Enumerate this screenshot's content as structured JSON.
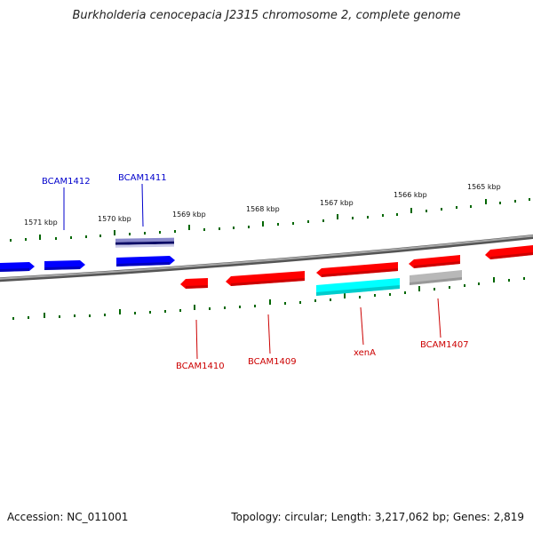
{
  "header": {
    "title": "Burkholderia cenocepacia J2315 chromosome 2, complete genome"
  },
  "footer": {
    "accession": "Accession: NC_011001",
    "summary": "Topology: circular; Length: 3,217,062 bp; Genes: 2,819"
  },
  "colors": {
    "forward_gene": "#0000ff",
    "reverse_gene": "#ff0000",
    "label_forward": "#0000cc",
    "label_reverse": "#cc0000",
    "rna_feature": "#00ffff",
    "pseudo_feature": "#b0b0b0",
    "backbone": "#808080",
    "tick": "#006600"
  },
  "scale": {
    "unit": "kbp",
    "labels": [
      "1571 kbp",
      "1570 kbp",
      "1569 kbp",
      "1568 kbp",
      "1567 kbp",
      "1566 kbp",
      "1565 kbp"
    ]
  },
  "gene_labels": {
    "forward": [
      "BCAM1412",
      "BCAM1411"
    ],
    "reverse": [
      "BCAM1410",
      "BCAM1409",
      "xenA",
      "BCAM1407"
    ]
  }
}
